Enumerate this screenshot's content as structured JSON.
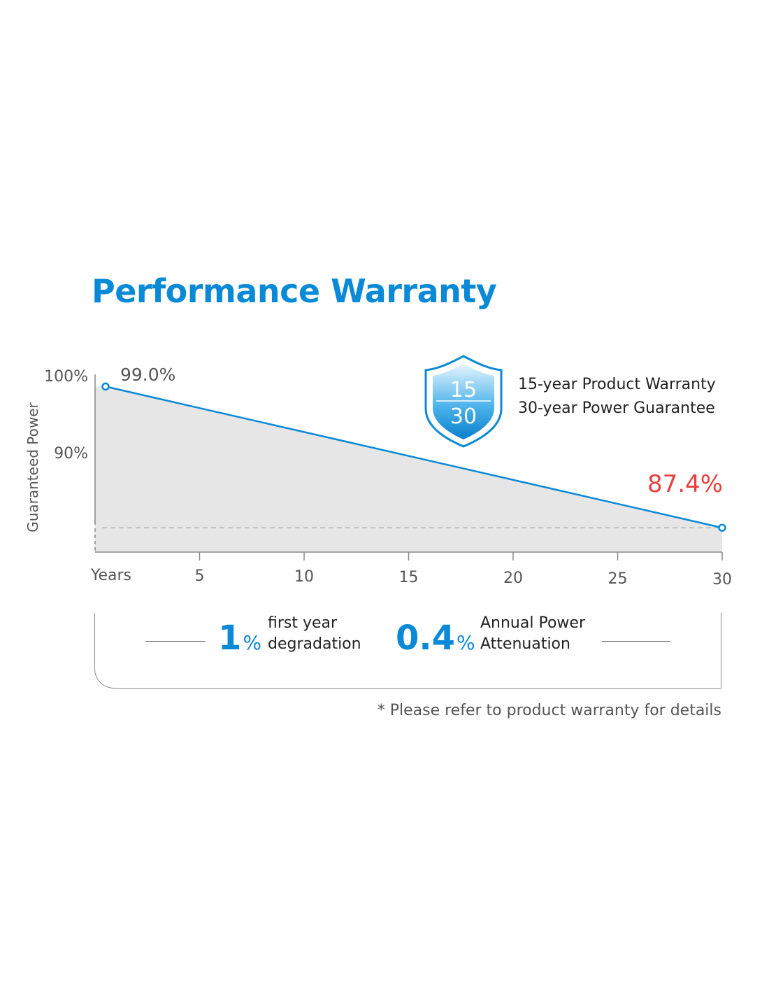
{
  "title": "Performance Warranty",
  "warranty": {
    "shield_top": "15",
    "shield_bottom": "30",
    "line1": "15-year Product  Warranty",
    "line2": "30-year Power Guarantee"
  },
  "stats": [
    {
      "number": "1",
      "unit": "%",
      "label_line1": "first year",
      "label_line2": "degradation"
    },
    {
      "number": "0.4",
      "unit": "%",
      "label_line1": "Annual Power",
      "label_line2": "Attenuation"
    }
  ],
  "footnote": "* Please refer to product warranty for details",
  "colors": {
    "accent": "#0a8ad6",
    "end_label": "#e8403f",
    "fill": "#e6e6e6",
    "axis": "#888888"
  },
  "chart_data": {
    "type": "area",
    "ylabel": "Guaranteed Power",
    "xlabel": "Years",
    "x_ticks": [
      5,
      10,
      15,
      20,
      25,
      30
    ],
    "y_ticks": [
      "100%",
      "90%"
    ],
    "series": [
      {
        "x": [
          0.5,
          30
        ],
        "values": [
          99.0,
          87.4
        ]
      }
    ],
    "annotations": {
      "start": "99.0%",
      "end": "87.4%"
    },
    "xlim": [
      0,
      30
    ],
    "ylim": [
      85.4,
      100.0
    ],
    "grid": false
  }
}
